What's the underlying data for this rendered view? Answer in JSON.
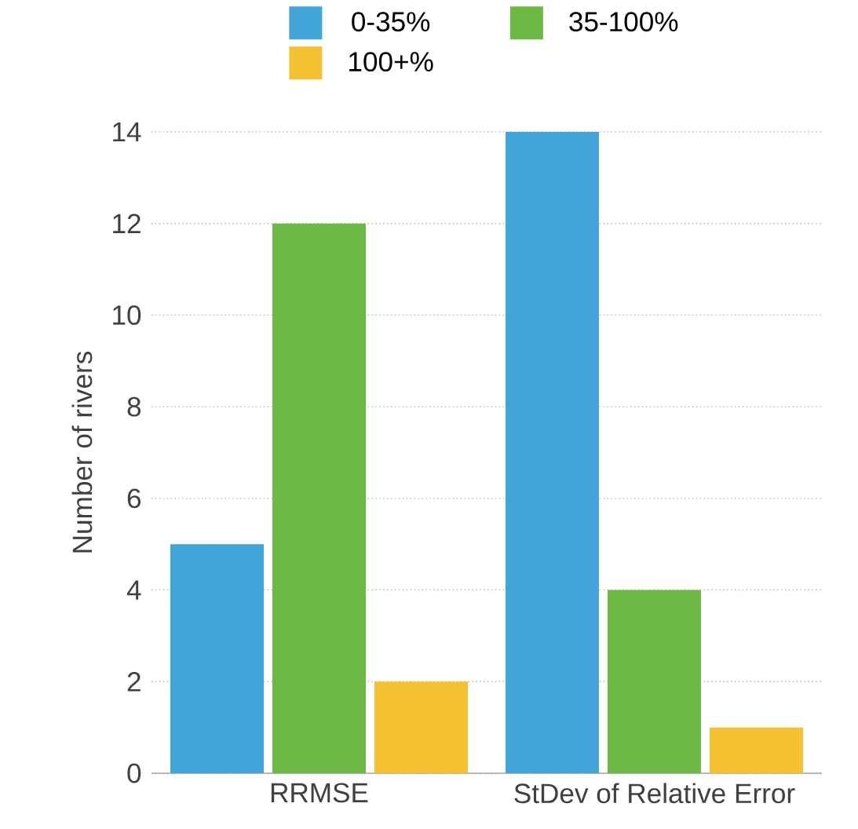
{
  "chart_data": {
    "type": "bar",
    "ylabel": "Number of rivers",
    "categories": [
      "RRMSE",
      "StDev of Relative Error"
    ],
    "series": [
      {
        "name": "0-35%",
        "color": "#42a5d8",
        "values": [
          5,
          14
        ]
      },
      {
        "name": "35-100%",
        "color": "#6db946",
        "values": [
          12,
          4
        ]
      },
      {
        "name": "100+%",
        "color": "#f5c130",
        "values": [
          2,
          1
        ]
      }
    ],
    "ylim": [
      0,
      14
    ],
    "yticks": [
      0,
      2,
      4,
      6,
      8,
      10,
      12,
      14
    ],
    "grid": "y",
    "legend": "top"
  }
}
